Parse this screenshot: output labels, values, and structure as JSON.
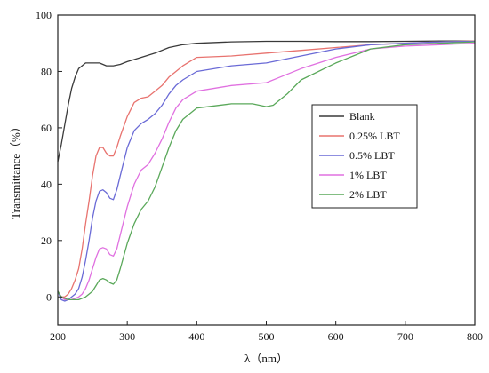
{
  "chart_data": {
    "type": "line",
    "xlabel": "λ（nm）",
    "ylabel": "Transmittance（%）",
    "xlim": [
      200,
      800
    ],
    "ylim": [
      -10,
      100
    ],
    "xticks": [
      200,
      300,
      400,
      500,
      600,
      700,
      800
    ],
    "yticks": [
      0,
      20,
      40,
      60,
      80,
      100
    ],
    "grid": false,
    "legend_position": "right",
    "series": [
      {
        "name": "Blank",
        "color": "#3a3a3a",
        "x": [
          200,
          205,
          210,
          215,
          220,
          225,
          230,
          240,
          250,
          260,
          270,
          280,
          290,
          300,
          320,
          340,
          360,
          380,
          400,
          450,
          500,
          550,
          600,
          650,
          700,
          750,
          800
        ],
        "y": [
          48,
          54,
          61,
          68,
          74,
          78,
          81,
          83,
          83,
          83,
          82,
          82,
          82.5,
          83.5,
          85,
          86.5,
          88.5,
          89.5,
          90,
          90.5,
          90.7,
          90.7,
          90.6,
          90.6,
          90.7,
          90.8,
          90.8
        ]
      },
      {
        "name": "0.25% LBT",
        "color": "#e8736f",
        "x": [
          200,
          205,
          210,
          215,
          220,
          225,
          230,
          235,
          240,
          245,
          250,
          255,
          260,
          265,
          270,
          275,
          280,
          285,
          290,
          300,
          310,
          320,
          330,
          340,
          350,
          360,
          370,
          380,
          400,
          450,
          500,
          550,
          600,
          650,
          700,
          750,
          800
        ],
        "y": [
          2,
          0,
          0,
          1,
          3,
          6,
          10,
          17,
          26,
          34,
          43,
          50,
          53,
          53,
          51,
          50,
          50,
          53,
          57,
          64,
          69,
          70.5,
          71,
          73,
          75,
          78,
          80,
          82,
          85,
          85.5,
          86.5,
          87.5,
          88.5,
          89.5,
          90,
          90.5,
          90.8
        ]
      },
      {
        "name": "0.5% LBT",
        "color": "#6a6ad6",
        "x": [
          200,
          205,
          210,
          215,
          220,
          225,
          230,
          235,
          240,
          245,
          250,
          255,
          260,
          265,
          270,
          275,
          280,
          285,
          290,
          300,
          310,
          320,
          330,
          340,
          350,
          360,
          370,
          380,
          400,
          450,
          500,
          550,
          600,
          650,
          700,
          750,
          800
        ],
        "y": [
          2,
          -1,
          -1.5,
          -1,
          0,
          1,
          3,
          7,
          13,
          20,
          28,
          34,
          37.5,
          38,
          37,
          35,
          34.5,
          38,
          43,
          53,
          59,
          61.5,
          63,
          65,
          68,
          72,
          75,
          77,
          80,
          82,
          83,
          85.5,
          88,
          89.5,
          90,
          90.5,
          90.7
        ]
      },
      {
        "name": "1% LBT",
        "color": "#e070e0",
        "x": [
          200,
          205,
          210,
          215,
          220,
          225,
          230,
          235,
          240,
          245,
          250,
          255,
          260,
          265,
          270,
          275,
          280,
          285,
          290,
          300,
          310,
          320,
          330,
          340,
          350,
          360,
          370,
          380,
          400,
          450,
          500,
          520,
          550,
          600,
          650,
          700,
          750,
          800
        ],
        "y": [
          2,
          0,
          -1,
          -1,
          -1,
          -0.5,
          0,
          1,
          3,
          6,
          10,
          14,
          17,
          17.5,
          17,
          15,
          14.5,
          17,
          22,
          32,
          40,
          45,
          47,
          51,
          56,
          62,
          67,
          70,
          73,
          75,
          76,
          78,
          81,
          85,
          88,
          89,
          89.5,
          90
        ]
      },
      {
        "name": "2% LBT",
        "color": "#5aa85a",
        "x": [
          200,
          205,
          210,
          215,
          220,
          225,
          230,
          235,
          240,
          245,
          250,
          255,
          260,
          265,
          270,
          275,
          280,
          285,
          290,
          300,
          310,
          320,
          330,
          340,
          350,
          360,
          370,
          380,
          400,
          450,
          480,
          500,
          510,
          530,
          550,
          600,
          650,
          700,
          750,
          800
        ],
        "y": [
          2,
          0,
          -0.5,
          -1,
          -1,
          -1,
          -1,
          -0.5,
          0,
          1,
          2,
          4,
          6,
          6.5,
          6,
          5,
          4.5,
          6,
          10,
          19,
          26,
          31,
          34,
          39,
          46,
          53,
          59,
          63,
          67,
          68.5,
          68.5,
          67.5,
          68,
          72,
          77,
          83,
          88,
          89.5,
          90,
          90.5
        ]
      }
    ]
  }
}
